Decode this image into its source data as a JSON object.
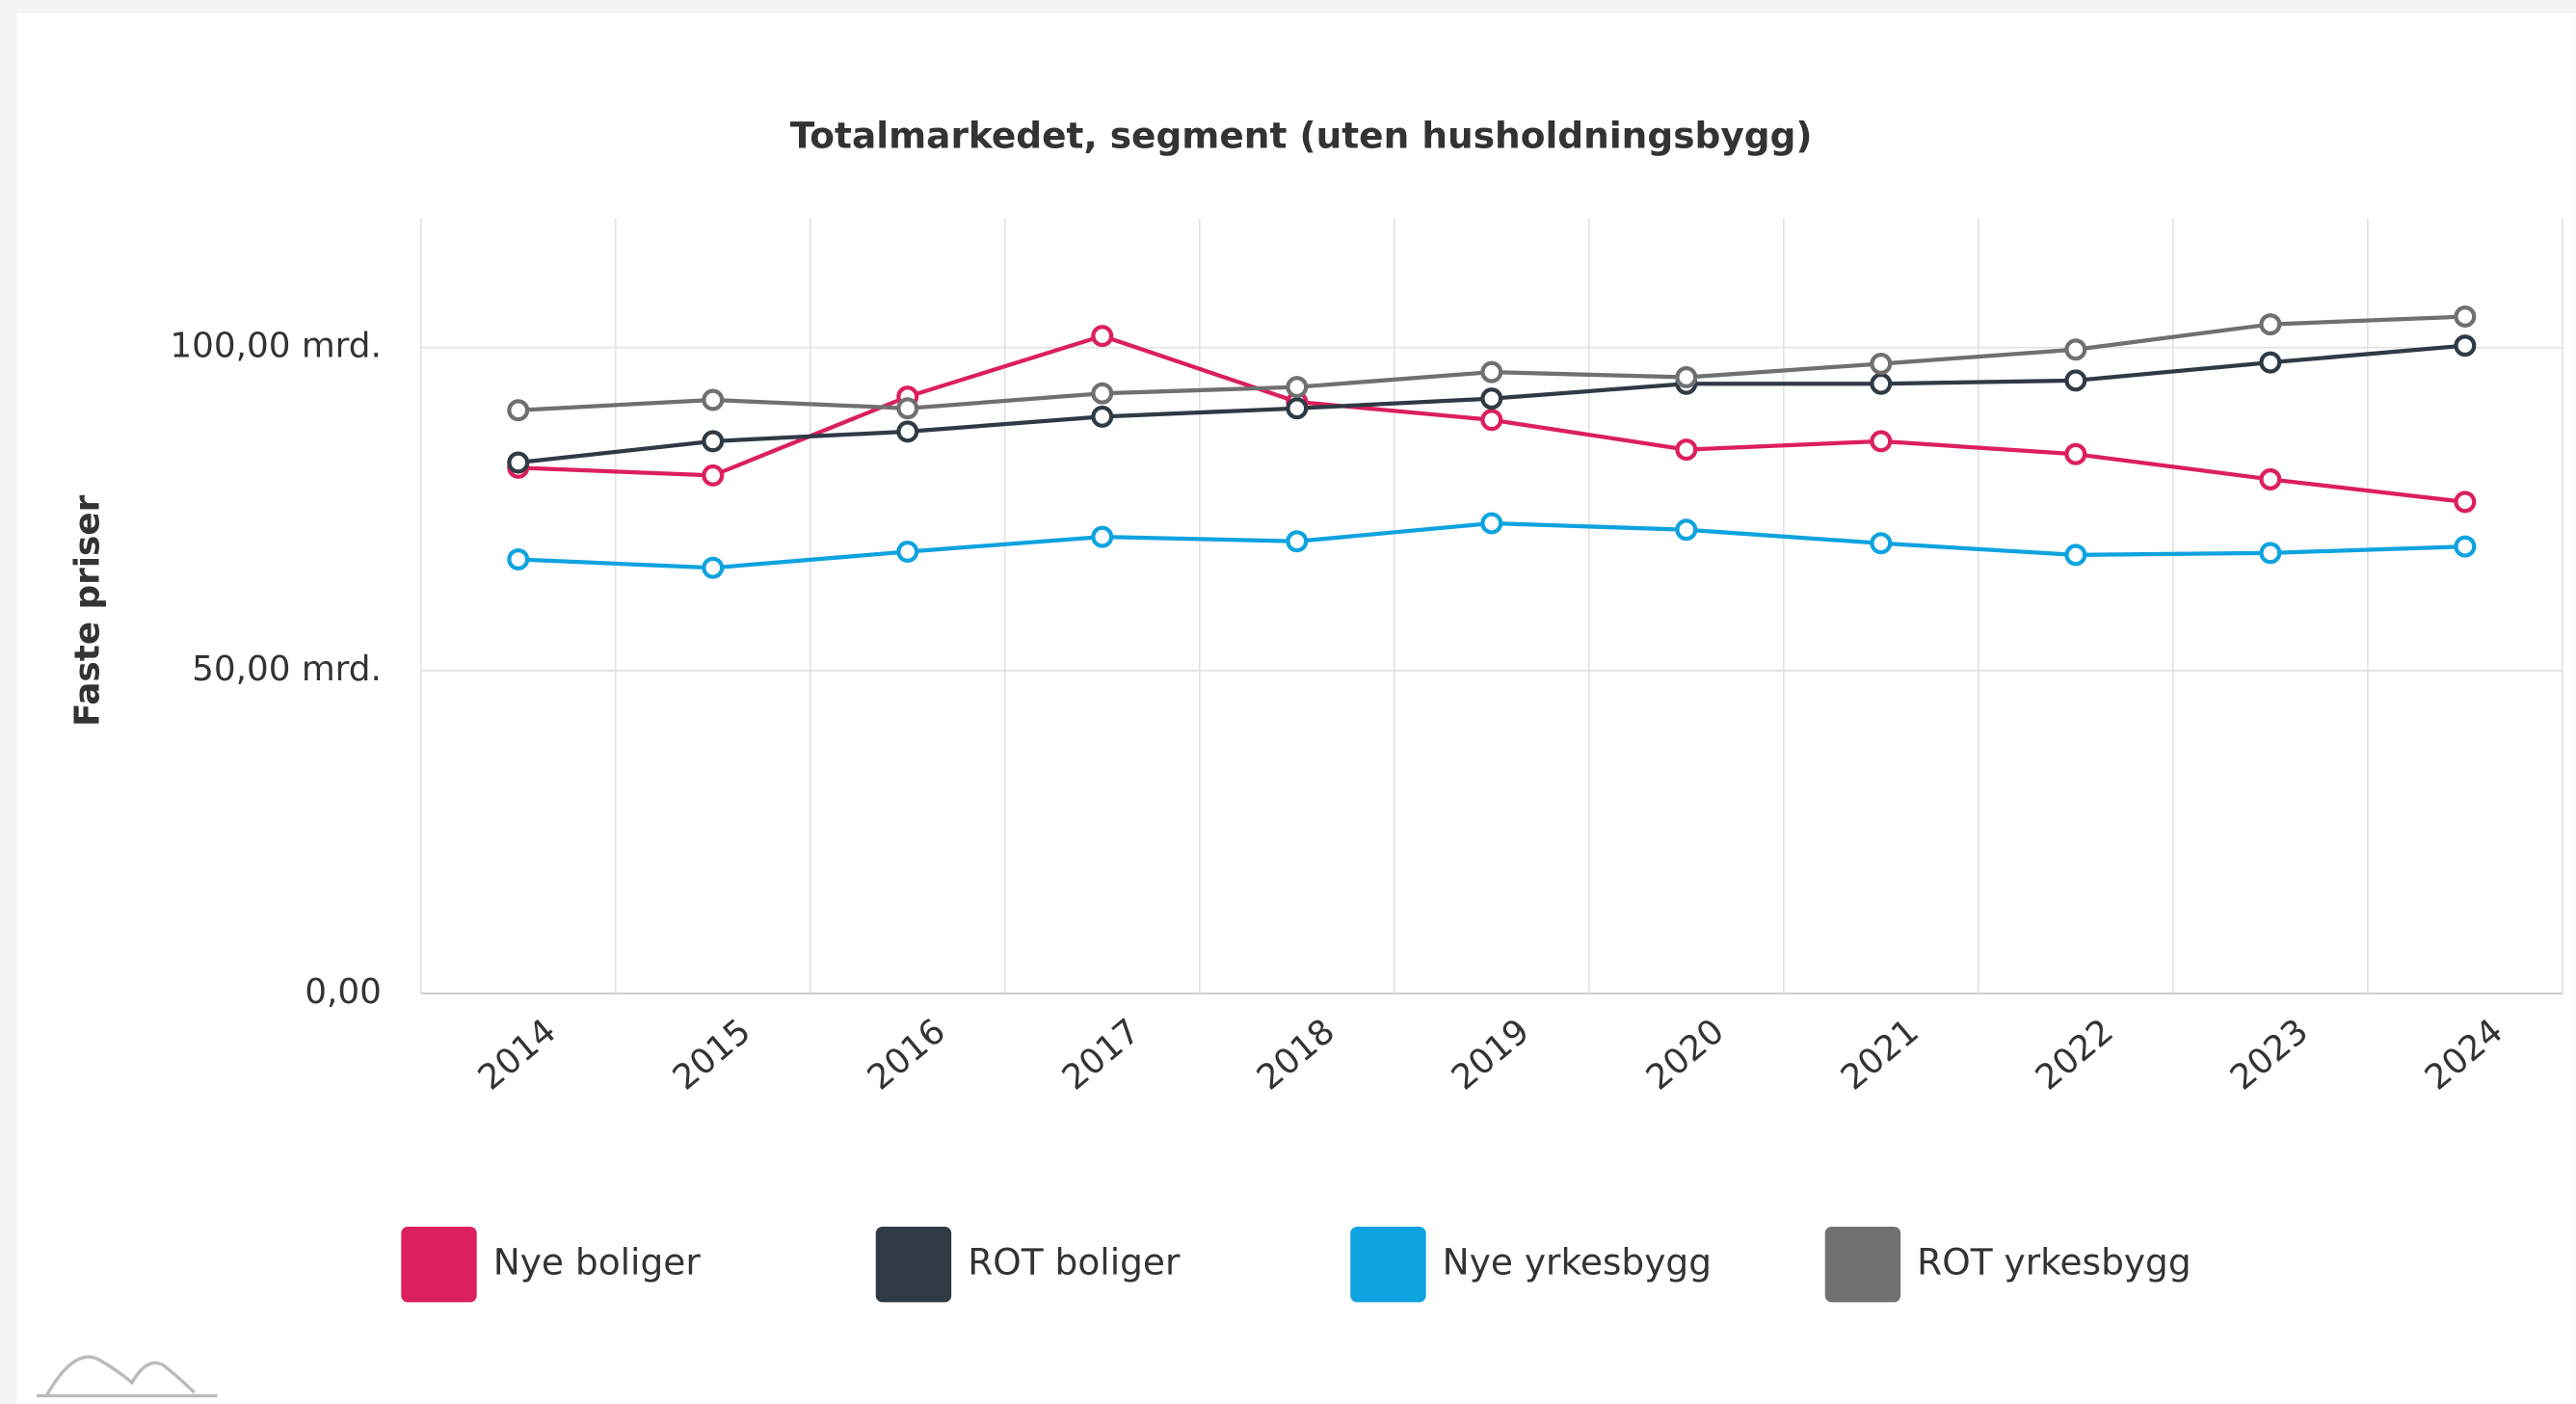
{
  "chart_data": {
    "type": "line",
    "title": "Totalmarkedet, segment (uten husholdningsbygg)",
    "y_label": "Faste priser",
    "categories": [
      "2014",
      "2015",
      "2016",
      "2017",
      "2018",
      "2019",
      "2020",
      "2021",
      "2022",
      "2023",
      "2024"
    ],
    "series": [
      {
        "name": "Nye boliger",
        "color": "#dc1f5e",
        "values": [
          81.4,
          80.2,
          92.4,
          101.8,
          91.6,
          88.8,
          84.2,
          85.5,
          83.5,
          79.6,
          76.1
        ]
      },
      {
        "name": "ROT boliger",
        "color": "#2f3a45",
        "values": [
          82.2,
          85.5,
          87.0,
          89.3,
          90.6,
          92.1,
          94.4,
          94.4,
          94.9,
          97.7,
          100.3
        ]
      },
      {
        "name": "Nye yrkesbygg",
        "color": "#0ea3e0",
        "values": [
          67.2,
          65.9,
          68.4,
          70.7,
          70.0,
          72.8,
          71.8,
          69.7,
          67.9,
          68.2,
          69.2
        ]
      },
      {
        "name": "ROT yrkesbygg",
        "color": "#707070",
        "values": [
          90.3,
          91.9,
          90.6,
          92.9,
          93.9,
          96.2,
          95.4,
          97.5,
          99.7,
          103.6,
          104.8
        ]
      }
    ],
    "ylim": [
      0,
      120
    ],
    "yticks": [
      {
        "value": 0,
        "label": "0,00"
      },
      {
        "value": 50,
        "label": "50,00 mrd."
      },
      {
        "value": 100,
        "label": "100,00 mrd."
      }
    ],
    "grid": true,
    "legend": "bottom"
  }
}
